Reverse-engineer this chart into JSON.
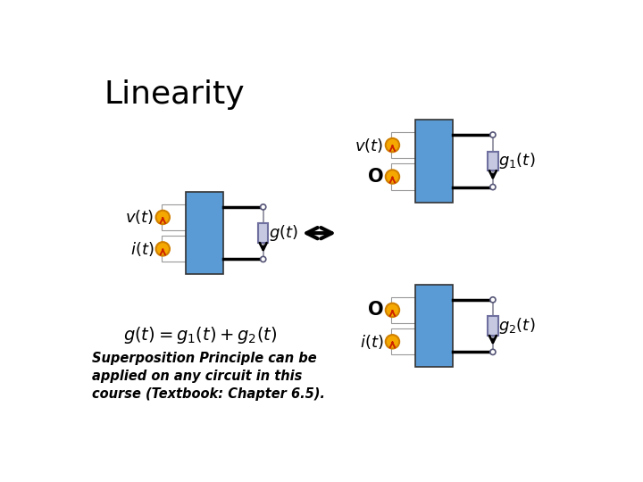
{
  "title": "Linearity",
  "title_fontsize": 26,
  "background_color": "#ffffff",
  "blue_box_color": "#5B9BD5",
  "resistor_color": "#C5C8E0",
  "resistor_border_color": "#7070A0",
  "source_fill": "#F5A800",
  "source_edge": "#D08000",
  "subtitle_text": "Superposition Principle can be\napplied on any circuit in this\ncourse (Textbook: Chapter 6.5).",
  "label_v": "$v(t)$",
  "label_i": "$i(t)$",
  "label_g": "$g(t)$",
  "label_g1": "$g_1(t)$",
  "label_g2": "$g_2(t)$",
  "label_O": "O",
  "equation": "$g(t)=g_1(t)+g_2(t)$"
}
